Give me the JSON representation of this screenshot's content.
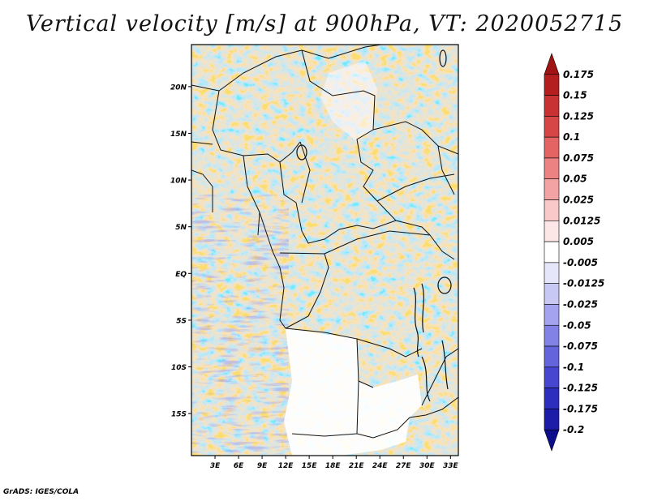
{
  "title": "Vertical velocity [m/s] at 900hPa, VT: 2020052715",
  "credit": "GrADS: IGES/COLA",
  "map": {
    "lat_labels": [
      "20N",
      "15N",
      "10N",
      "5N",
      "EQ",
      "5S",
      "10S",
      "15S"
    ],
    "lat_values": [
      20,
      15,
      10,
      5,
      0,
      -5,
      -10,
      -15
    ],
    "lon_labels": [
      "3E",
      "6E",
      "9E",
      "12E",
      "15E",
      "18E",
      "21E",
      "24E",
      "27E",
      "30E",
      "33E"
    ],
    "lon_values": [
      3,
      6,
      9,
      12,
      15,
      18,
      21,
      24,
      27,
      30,
      33
    ],
    "lon_range": [
      0,
      34
    ],
    "lat_range": [
      -19.5,
      24.5
    ]
  },
  "colorbar": {
    "labels": [
      "0.175",
      "0.15",
      "0.125",
      "0.1",
      "0.075",
      "0.05",
      "0.025",
      "0.0125",
      "0.005",
      "-0.005",
      "-0.0125",
      "-0.025",
      "-0.05",
      "-0.075",
      "-0.1",
      "-0.125",
      "-0.175",
      "-0.2"
    ],
    "colors": [
      "#a01414",
      "#b41e1e",
      "#c83232",
      "#d74646",
      "#e46464",
      "#ec8282",
      "#f3a3a3",
      "#f9c8c8",
      "#fde6e6",
      "#ffffff",
      "#e6e6fb",
      "#c8c8f5",
      "#a3a3ef",
      "#8282e6",
      "#6464dc",
      "#4646d0",
      "#2e2ebe",
      "#1c1ca8",
      "#0e0e8c"
    ]
  }
}
